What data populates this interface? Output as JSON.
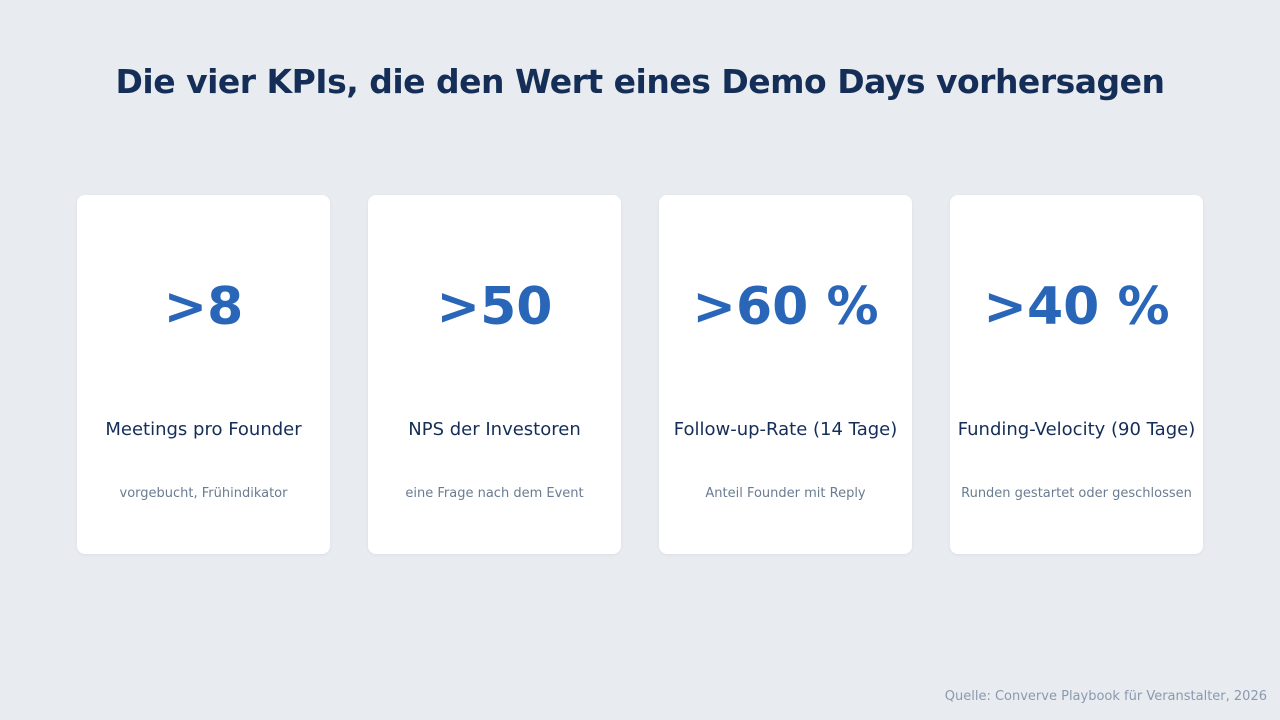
{
  "title": "Die vier KPIs, die den Wert eines Demo Days vorhersagen",
  "cards": [
    {
      "value": ">8",
      "label": "Meetings pro Founder",
      "sub": "vorgebucht, Frühindikator"
    },
    {
      "value": ">50",
      "label": "NPS der Investoren",
      "sub": "eine Frage nach dem Event"
    },
    {
      "value": ">60 %",
      "label": "Follow-up-Rate (14 Tage)",
      "sub": "Anteil Founder mit Reply"
    },
    {
      "value": ">40 %",
      "label": "Funding-Velocity (90 Tage)",
      "sub": "Runden gestartet oder geschlossen"
    }
  ],
  "source": "Quelle: Converve Playbook für Veranstalter, 2026",
  "colors": {
    "background": "#e8ebef",
    "title": "#142e58",
    "value": "#2a66b8",
    "sub": "#6a7c92",
    "card": "#ffffff"
  }
}
